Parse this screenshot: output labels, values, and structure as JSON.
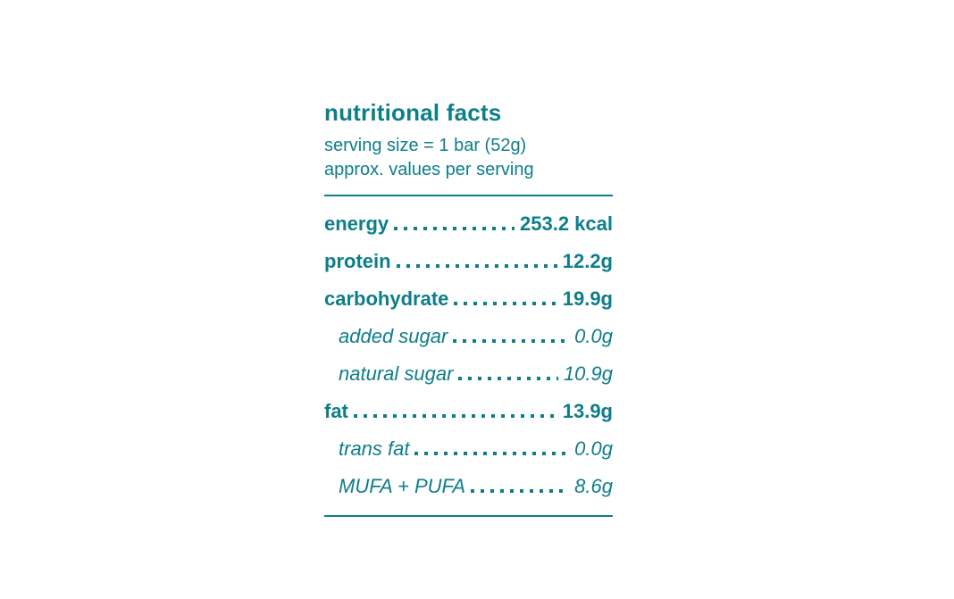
{
  "theme": {
    "accent_color": "#0e7e89",
    "background_color": "#ffffff"
  },
  "nutrition_panel": {
    "title": "nutritional facts",
    "subtitle_line1": "serving size = 1 bar (52g)",
    "subtitle_line2": "approx. values per serving",
    "rows": [
      {
        "label": "energy",
        "value": "253.2 kcal",
        "style": "main"
      },
      {
        "label": "protein",
        "value": "12.2g",
        "style": "main"
      },
      {
        "label": "carbohydrate",
        "value": "19.9g",
        "style": "main"
      },
      {
        "label": "added sugar",
        "value": "0.0g",
        "style": "sub"
      },
      {
        "label": "natural sugar",
        "value": "10.9g",
        "style": "sub"
      },
      {
        "label": "fat",
        "value": "13.9g",
        "style": "main"
      },
      {
        "label": "trans fat",
        "value": "0.0g",
        "style": "sub"
      },
      {
        "label": "MUFA + PUFA",
        "value": "8.6g",
        "style": "sub"
      }
    ]
  }
}
